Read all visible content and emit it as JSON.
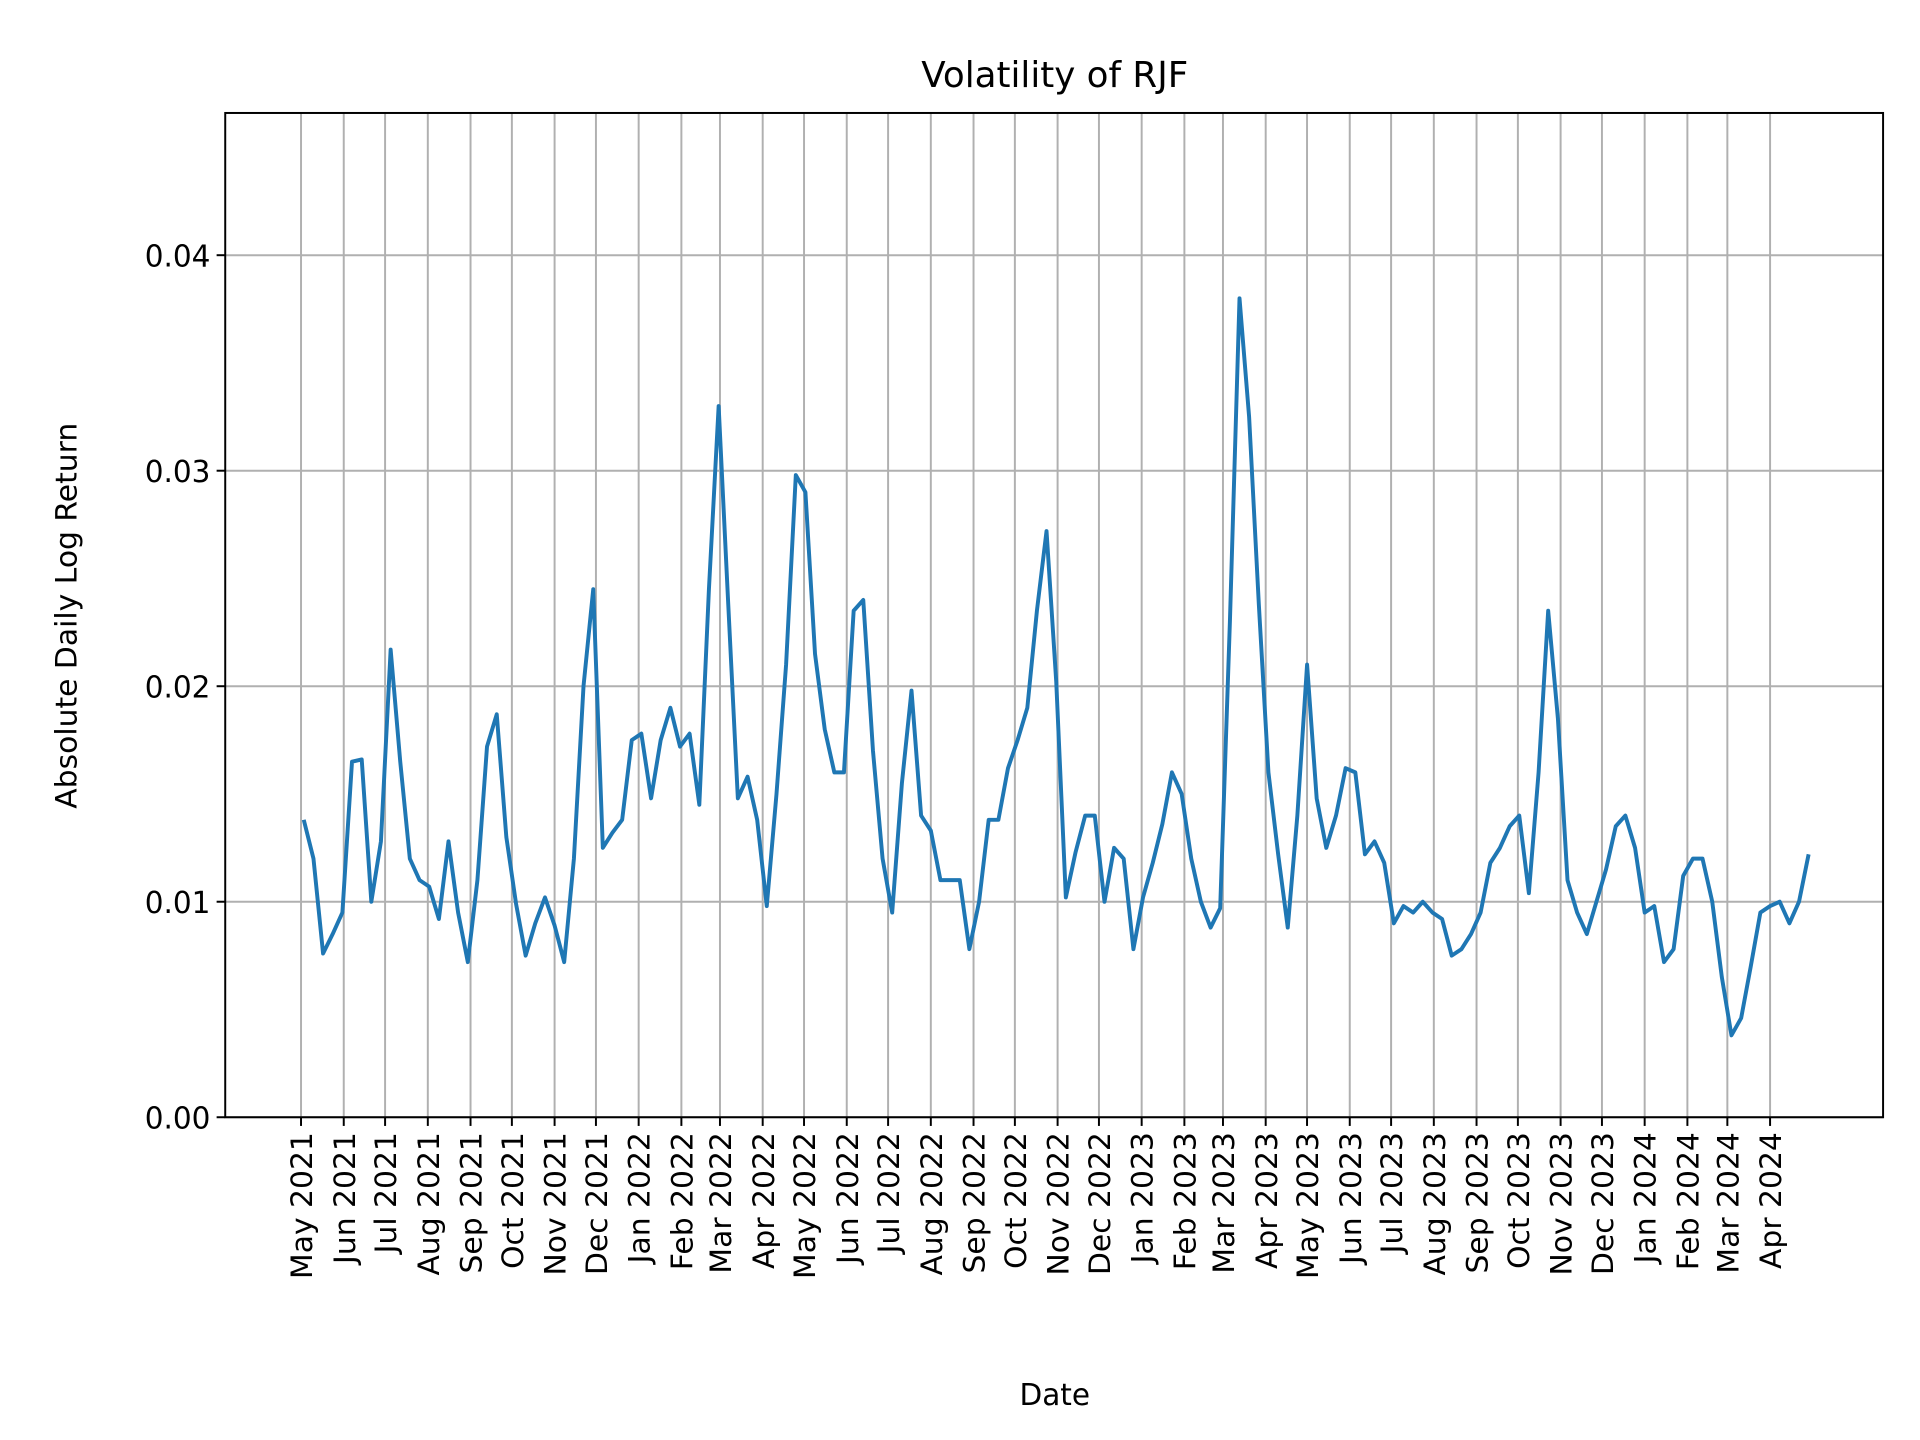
{
  "chart_data": {
    "type": "line",
    "title": "Volatility of RJF",
    "xlabel": "Date",
    "ylabel": "Absolute Daily Log Return",
    "xlim": [
      "2021-03-07",
      "2024-06-22"
    ],
    "ylim": [
      0,
      0.0466
    ],
    "grid": true,
    "line_color": "#1f77b4",
    "grid_color": "#b0b0b0",
    "yticks": [
      0.0,
      0.01,
      0.02,
      0.03,
      0.04
    ],
    "ytick_labels": [
      "0.00",
      "0.01",
      "0.02",
      "0.03",
      "0.04"
    ],
    "xticks": [
      "2021-05-01",
      "2021-06-01",
      "2021-07-01",
      "2021-08-01",
      "2021-09-01",
      "2021-10-01",
      "2021-11-01",
      "2021-12-01",
      "2022-01-01",
      "2022-02-01",
      "2022-03-01",
      "2022-04-01",
      "2022-05-01",
      "2022-06-01",
      "2022-07-01",
      "2022-08-01",
      "2022-09-01",
      "2022-10-01",
      "2022-11-01",
      "2022-12-01",
      "2023-01-01",
      "2023-02-01",
      "2023-03-01",
      "2023-04-01",
      "2023-05-01",
      "2023-06-01",
      "2023-07-01",
      "2023-08-01",
      "2023-09-01",
      "2023-10-01",
      "2023-11-01",
      "2023-12-01",
      "2024-01-01",
      "2024-02-01",
      "2024-03-01",
      "2024-04-01"
    ],
    "xtick_labels": [
      "May 2021",
      "Jun 2021",
      "Jul 2021",
      "Aug 2021",
      "Sep 2021",
      "Oct 2021",
      "Nov 2021",
      "Dec 2021",
      "Jan 2022",
      "Feb 2022",
      "Mar 2022",
      "Apr 2022",
      "May 2022",
      "Jun 2022",
      "Jul 2022",
      "Aug 2022",
      "Sep 2022",
      "Oct 2022",
      "Nov 2022",
      "Dec 2022",
      "Jan 2023",
      "Feb 2023",
      "Mar 2023",
      "Apr 2023",
      "May 2023",
      "Jun 2023",
      "Jul 2023",
      "Aug 2023",
      "Sep 2023",
      "Oct 2023",
      "Nov 2023",
      "Dec 2023",
      "Jan 2024",
      "Feb 2024",
      "Mar 2024",
      "Apr 2024"
    ],
    "x": [
      "2021-05-03",
      "2021-05-10",
      "2021-05-17",
      "2021-05-24",
      "2021-05-31",
      "2021-06-07",
      "2021-06-14",
      "2021-06-21",
      "2021-06-28",
      "2021-07-05",
      "2021-07-12",
      "2021-07-19",
      "2021-07-26",
      "2021-08-02",
      "2021-08-09",
      "2021-08-16",
      "2021-08-23",
      "2021-08-30",
      "2021-09-06",
      "2021-09-13",
      "2021-09-20",
      "2021-09-27",
      "2021-10-04",
      "2021-10-11",
      "2021-10-18",
      "2021-10-25",
      "2021-11-01",
      "2021-11-08",
      "2021-11-15",
      "2021-11-22",
      "2021-11-29",
      "2021-12-06",
      "2021-12-13",
      "2021-12-20",
      "2021-12-27",
      "2022-01-03",
      "2022-01-10",
      "2022-01-17",
      "2022-01-24",
      "2022-01-31",
      "2022-02-07",
      "2022-02-14",
      "2022-02-21",
      "2022-02-28",
      "2022-03-07",
      "2022-03-14",
      "2022-03-21",
      "2022-03-28",
      "2022-04-04",
      "2022-04-11",
      "2022-04-18",
      "2022-04-25",
      "2022-05-02",
      "2022-05-09",
      "2022-05-16",
      "2022-05-23",
      "2022-05-30",
      "2022-06-06",
      "2022-06-13",
      "2022-06-20",
      "2022-06-27",
      "2022-07-04",
      "2022-07-11",
      "2022-07-18",
      "2022-07-25",
      "2022-08-01",
      "2022-08-08",
      "2022-08-15",
      "2022-08-22",
      "2022-08-29",
      "2022-09-05",
      "2022-09-12",
      "2022-09-19",
      "2022-09-26",
      "2022-10-03",
      "2022-10-10",
      "2022-10-17",
      "2022-10-24",
      "2022-10-31",
      "2022-11-07",
      "2022-11-14",
      "2022-11-21",
      "2022-11-28",
      "2022-12-05",
      "2022-12-12",
      "2022-12-19",
      "2022-12-26",
      "2023-01-02",
      "2023-01-09",
      "2023-01-16",
      "2023-01-23",
      "2023-01-30",
      "2023-02-06",
      "2023-02-13",
      "2023-02-20",
      "2023-02-27",
      "2023-03-06",
      "2023-03-13",
      "2023-03-20",
      "2023-03-27",
      "2023-04-03",
      "2023-04-10",
      "2023-04-17",
      "2023-04-24",
      "2023-05-01",
      "2023-05-08",
      "2023-05-15",
      "2023-05-22",
      "2023-05-29",
      "2023-06-05",
      "2023-06-12",
      "2023-06-19",
      "2023-06-26",
      "2023-07-03",
      "2023-07-10",
      "2023-07-17",
      "2023-07-24",
      "2023-07-31",
      "2023-08-07",
      "2023-08-14",
      "2023-08-21",
      "2023-08-28",
      "2023-09-04",
      "2023-09-11",
      "2023-09-18",
      "2023-09-25",
      "2023-10-02",
      "2023-10-09",
      "2023-10-16",
      "2023-10-23",
      "2023-10-30",
      "2023-11-06",
      "2023-11-13",
      "2023-11-20",
      "2023-11-27",
      "2023-12-04",
      "2023-12-11",
      "2023-12-18",
      "2023-12-25",
      "2024-01-01",
      "2024-01-08",
      "2024-01-15",
      "2024-01-22",
      "2024-01-29",
      "2024-02-05",
      "2024-02-12",
      "2024-02-19",
      "2024-02-26",
      "2024-03-04",
      "2024-03-11",
      "2024-03-18",
      "2024-03-25",
      "2024-04-01",
      "2024-04-08",
      "2024-04-15",
      "2024-04-22",
      "2024-04-29"
    ],
    "values": [
      0.0138,
      0.012,
      0.0076,
      0.0085,
      0.0095,
      0.0165,
      0.0166,
      0.01,
      0.0128,
      0.0217,
      0.0165,
      0.012,
      0.011,
      0.0107,
      0.0092,
      0.0128,
      0.0095,
      0.0072,
      0.011,
      0.0172,
      0.0187,
      0.013,
      0.0099,
      0.0075,
      0.009,
      0.0102,
      0.0089,
      0.0072,
      0.012,
      0.02,
      0.0245,
      0.0125,
      0.0132,
      0.0138,
      0.0175,
      0.0178,
      0.0148,
      0.0175,
      0.019,
      0.0172,
      0.0178,
      0.0145,
      0.0245,
      0.033,
      0.0238,
      0.0148,
      0.0158,
      0.0138,
      0.0098,
      0.015,
      0.021,
      0.0298,
      0.029,
      0.0215,
      0.018,
      0.016,
      0.016,
      0.0235,
      0.024,
      0.017,
      0.012,
      0.0095,
      0.0155,
      0.0198,
      0.014,
      0.0133,
      0.011,
      0.011,
      0.011,
      0.0078,
      0.01,
      0.0138,
      0.0138,
      0.0162,
      0.0175,
      0.019,
      0.0235,
      0.0272,
      0.0202,
      0.0102,
      0.0123,
      0.014,
      0.014,
      0.01,
      0.0125,
      0.012,
      0.0078,
      0.0102,
      0.0118,
      0.0136,
      0.016,
      0.015,
      0.012,
      0.01,
      0.0088,
      0.0097,
      0.023,
      0.038,
      0.0325,
      0.0238,
      0.016,
      0.0122,
      0.0088,
      0.014,
      0.021,
      0.0148,
      0.0125,
      0.014,
      0.0162,
      0.016,
      0.0122,
      0.0128,
      0.0118,
      0.009,
      0.0098,
      0.0095,
      0.01,
      0.0095,
      0.0092,
      0.0075,
      0.0078,
      0.0085,
      0.0095,
      0.0118,
      0.0125,
      0.0135,
      0.014,
      0.0104,
      0.016,
      0.0235,
      0.0185,
      0.011,
      0.0095,
      0.0085,
      0.01,
      0.0115,
      0.0135,
      0.014,
      0.0125,
      0.0095,
      0.0098,
      0.0072,
      0.0078,
      0.0112,
      0.012,
      0.012,
      0.01,
      0.0065,
      0.0038,
      0.0046,
      0.007,
      0.0095,
      0.0098,
      0.01,
      0.009,
      0.01,
      0.0122
    ]
  }
}
